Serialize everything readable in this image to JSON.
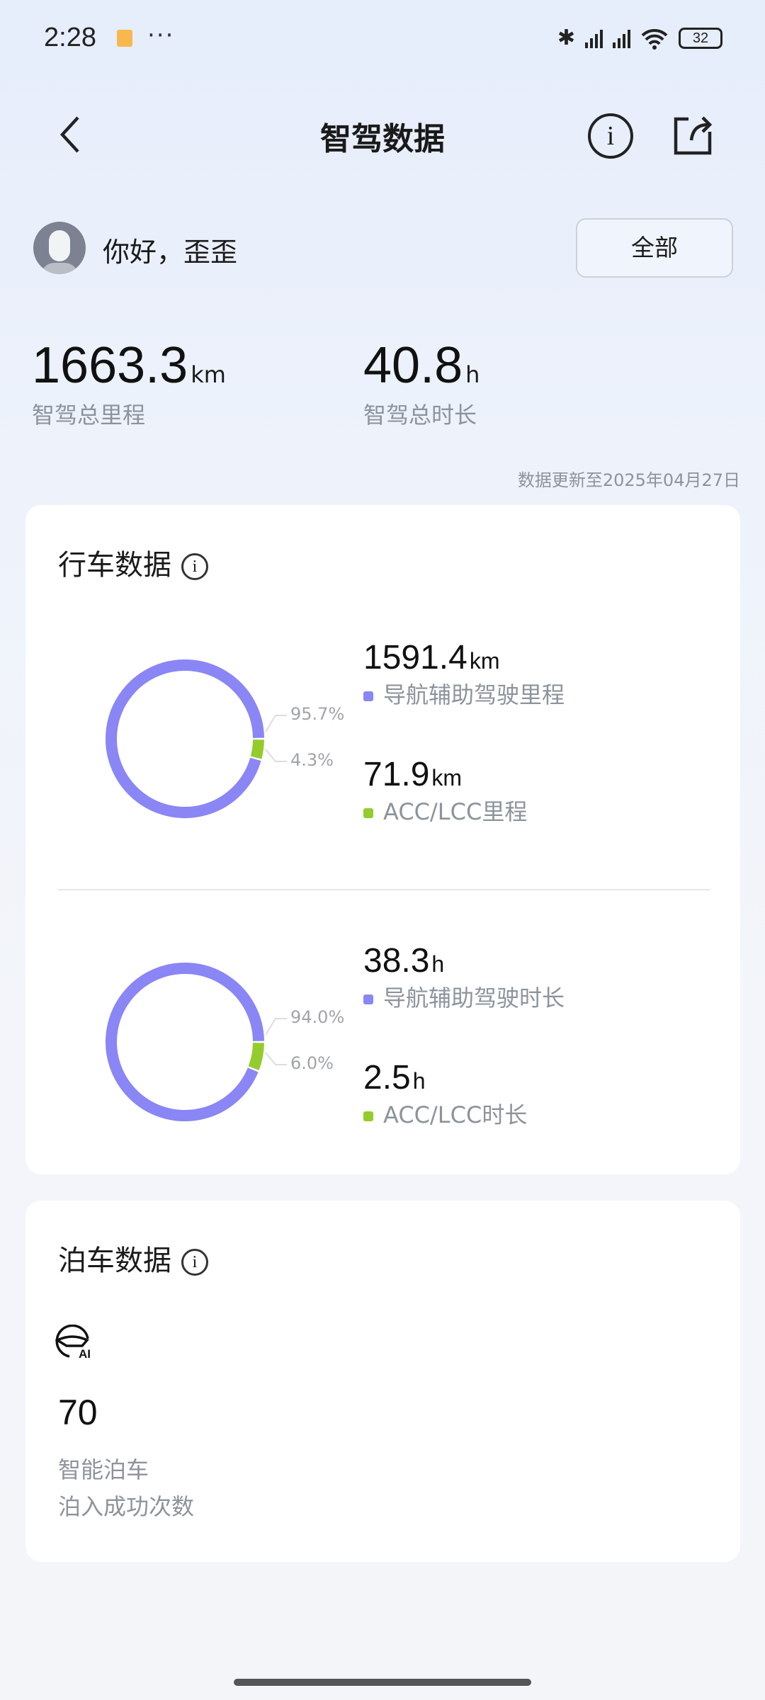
{
  "status_bar": {
    "time": "2:28",
    "battery": "32"
  },
  "header": {
    "title": "智驾数据"
  },
  "user": {
    "greeting": "你好，歪歪",
    "filter_label": "全部"
  },
  "totals": {
    "mileage": {
      "value": "1663.3",
      "unit": "km",
      "label": "智驾总里程"
    },
    "duration": {
      "value": "40.8",
      "unit": "h",
      "label": "智驾总时长"
    },
    "updated": "数据更新至2025年04月27日"
  },
  "colors": {
    "nav_assist": "#8a86f5",
    "acc_lcc": "#94cc2c"
  },
  "driving": {
    "title": "行车数据",
    "mileage": {
      "nav": {
        "value": "1591.4",
        "unit": "km",
        "label": "导航辅助驾驶里程",
        "percent": "95.7%"
      },
      "acc": {
        "value": "71.9",
        "unit": "km",
        "label": "ACC/LCC里程",
        "percent": "4.3%"
      }
    },
    "duration": {
      "nav": {
        "value": "38.3",
        "unit": "h",
        "label": "导航辅助驾驶时长",
        "percent": "94.0%"
      },
      "acc": {
        "value": "2.5",
        "unit": "h",
        "label": "ACC/LCC时长",
        "percent": "6.0%"
      }
    }
  },
  "chart_data": [
    {
      "type": "pie",
      "categories": [
        "导航辅助驾驶里程",
        "ACC/LCC里程"
      ],
      "values": [
        95.7,
        4.3
      ]
    },
    {
      "type": "pie",
      "categories": [
        "导航辅助驾驶时长",
        "ACC/LCC时长"
      ],
      "values": [
        94.0,
        6.0
      ]
    }
  ],
  "parking": {
    "title": "泊车数据",
    "icon": "ai-parking-icon",
    "count": "70",
    "label1": "智能泊车",
    "label2": "泊入成功次数"
  }
}
